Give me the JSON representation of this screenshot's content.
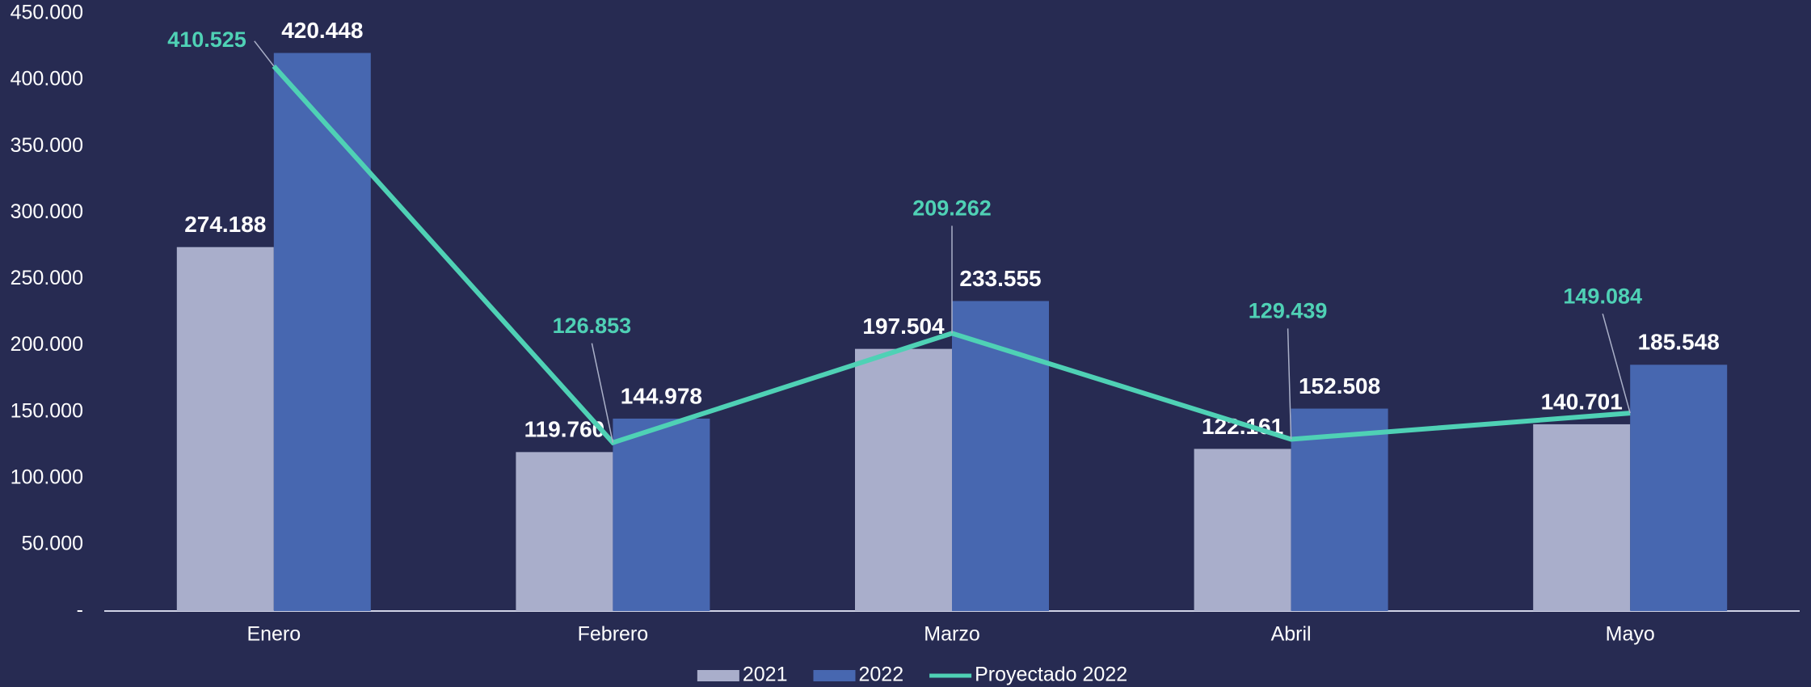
{
  "chart_data": {
    "type": "bar",
    "categories": [
      "Enero",
      "Febrero",
      "Marzo",
      "Abril",
      "Mayo"
    ],
    "series": [
      {
        "name": "2021",
        "type": "bar",
        "color": "#a9aecb",
        "values": [
          274188,
          119760,
          197504,
          122161,
          140701
        ],
        "value_labels": [
          "274.188",
          "119.760",
          "197.504",
          "122.161",
          "140.701"
        ]
      },
      {
        "name": "2022",
        "type": "bar",
        "color": "#4767b0",
        "values": [
          420448,
          144978,
          233555,
          152508,
          185548
        ],
        "value_labels": [
          "420.448",
          "144.978",
          "233.555",
          "152.508",
          "185.548"
        ]
      },
      {
        "name": "Proyectado 2022",
        "type": "line",
        "color": "#4fd1b5",
        "values": [
          410525,
          126853,
          209262,
          129439,
          149084
        ],
        "value_labels": [
          "410.525",
          "126.853",
          "209.262",
          "129.439",
          "149.084"
        ]
      }
    ],
    "ylim": [
      0,
      450000
    ],
    "yticks": [
      {
        "value": 0,
        "label": "-"
      },
      {
        "value": 50000,
        "label": "50.000"
      },
      {
        "value": 100000,
        "label": "100.000"
      },
      {
        "value": 150000,
        "label": "150.000"
      },
      {
        "value": 200000,
        "label": "200.000"
      },
      {
        "value": 250000,
        "label": "250.000"
      },
      {
        "value": 300000,
        "label": "300.000"
      },
      {
        "value": 350000,
        "label": "350.000"
      },
      {
        "value": 400000,
        "label": "400.000"
      },
      {
        "value": 450000,
        "label": "450.000"
      }
    ],
    "legend": "bottom"
  }
}
